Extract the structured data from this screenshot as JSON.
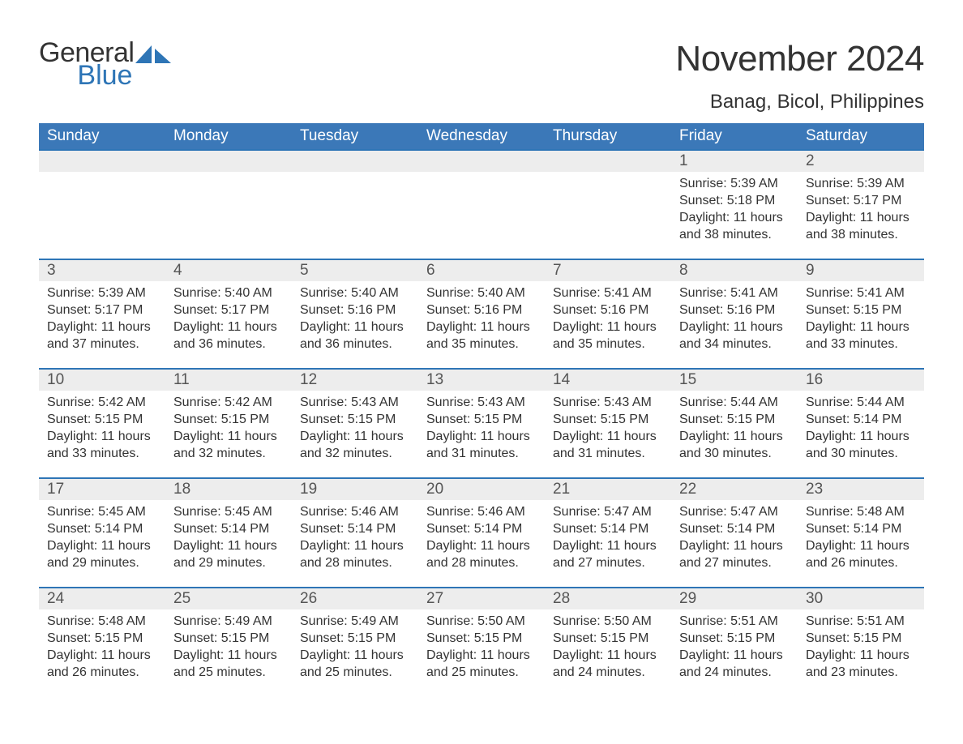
{
  "logo": {
    "general": "General",
    "blue": "Blue",
    "icon_color": "#2e75b6",
    "text_color_dark": "#333333"
  },
  "title": "November 2024",
  "location": "Banag, Bicol, Philippines",
  "colors": {
    "header_bg": "#3b78b8",
    "header_text": "#ffffff",
    "daynum_bg": "#ededed",
    "daynum_border": "#2e75b6",
    "body_text": "#333333",
    "daynum_text": "#555555",
    "page_bg": "#ffffff"
  },
  "fonts": {
    "title_size": 44,
    "location_size": 24,
    "header_size": 19,
    "daynum_size": 19,
    "detail_size": 16
  },
  "weekday_headers": [
    "Sunday",
    "Monday",
    "Tuesday",
    "Wednesday",
    "Thursday",
    "Friday",
    "Saturday"
  ],
  "weeks": [
    [
      null,
      null,
      null,
      null,
      null,
      {
        "n": "1",
        "sunrise": "Sunrise: 5:39 AM",
        "sunset": "Sunset: 5:18 PM",
        "daylight": "Daylight: 11 hours and 38 minutes."
      },
      {
        "n": "2",
        "sunrise": "Sunrise: 5:39 AM",
        "sunset": "Sunset: 5:17 PM",
        "daylight": "Daylight: 11 hours and 38 minutes."
      }
    ],
    [
      {
        "n": "3",
        "sunrise": "Sunrise: 5:39 AM",
        "sunset": "Sunset: 5:17 PM",
        "daylight": "Daylight: 11 hours and 37 minutes."
      },
      {
        "n": "4",
        "sunrise": "Sunrise: 5:40 AM",
        "sunset": "Sunset: 5:17 PM",
        "daylight": "Daylight: 11 hours and 36 minutes."
      },
      {
        "n": "5",
        "sunrise": "Sunrise: 5:40 AM",
        "sunset": "Sunset: 5:16 PM",
        "daylight": "Daylight: 11 hours and 36 minutes."
      },
      {
        "n": "6",
        "sunrise": "Sunrise: 5:40 AM",
        "sunset": "Sunset: 5:16 PM",
        "daylight": "Daylight: 11 hours and 35 minutes."
      },
      {
        "n": "7",
        "sunrise": "Sunrise: 5:41 AM",
        "sunset": "Sunset: 5:16 PM",
        "daylight": "Daylight: 11 hours and 35 minutes."
      },
      {
        "n": "8",
        "sunrise": "Sunrise: 5:41 AM",
        "sunset": "Sunset: 5:16 PM",
        "daylight": "Daylight: 11 hours and 34 minutes."
      },
      {
        "n": "9",
        "sunrise": "Sunrise: 5:41 AM",
        "sunset": "Sunset: 5:15 PM",
        "daylight": "Daylight: 11 hours and 33 minutes."
      }
    ],
    [
      {
        "n": "10",
        "sunrise": "Sunrise: 5:42 AM",
        "sunset": "Sunset: 5:15 PM",
        "daylight": "Daylight: 11 hours and 33 minutes."
      },
      {
        "n": "11",
        "sunrise": "Sunrise: 5:42 AM",
        "sunset": "Sunset: 5:15 PM",
        "daylight": "Daylight: 11 hours and 32 minutes."
      },
      {
        "n": "12",
        "sunrise": "Sunrise: 5:43 AM",
        "sunset": "Sunset: 5:15 PM",
        "daylight": "Daylight: 11 hours and 32 minutes."
      },
      {
        "n": "13",
        "sunrise": "Sunrise: 5:43 AM",
        "sunset": "Sunset: 5:15 PM",
        "daylight": "Daylight: 11 hours and 31 minutes."
      },
      {
        "n": "14",
        "sunrise": "Sunrise: 5:43 AM",
        "sunset": "Sunset: 5:15 PM",
        "daylight": "Daylight: 11 hours and 31 minutes."
      },
      {
        "n": "15",
        "sunrise": "Sunrise: 5:44 AM",
        "sunset": "Sunset: 5:15 PM",
        "daylight": "Daylight: 11 hours and 30 minutes."
      },
      {
        "n": "16",
        "sunrise": "Sunrise: 5:44 AM",
        "sunset": "Sunset: 5:14 PM",
        "daylight": "Daylight: 11 hours and 30 minutes."
      }
    ],
    [
      {
        "n": "17",
        "sunrise": "Sunrise: 5:45 AM",
        "sunset": "Sunset: 5:14 PM",
        "daylight": "Daylight: 11 hours and 29 minutes."
      },
      {
        "n": "18",
        "sunrise": "Sunrise: 5:45 AM",
        "sunset": "Sunset: 5:14 PM",
        "daylight": "Daylight: 11 hours and 29 minutes."
      },
      {
        "n": "19",
        "sunrise": "Sunrise: 5:46 AM",
        "sunset": "Sunset: 5:14 PM",
        "daylight": "Daylight: 11 hours and 28 minutes."
      },
      {
        "n": "20",
        "sunrise": "Sunrise: 5:46 AM",
        "sunset": "Sunset: 5:14 PM",
        "daylight": "Daylight: 11 hours and 28 minutes."
      },
      {
        "n": "21",
        "sunrise": "Sunrise: 5:47 AM",
        "sunset": "Sunset: 5:14 PM",
        "daylight": "Daylight: 11 hours and 27 minutes."
      },
      {
        "n": "22",
        "sunrise": "Sunrise: 5:47 AM",
        "sunset": "Sunset: 5:14 PM",
        "daylight": "Daylight: 11 hours and 27 minutes."
      },
      {
        "n": "23",
        "sunrise": "Sunrise: 5:48 AM",
        "sunset": "Sunset: 5:14 PM",
        "daylight": "Daylight: 11 hours and 26 minutes."
      }
    ],
    [
      {
        "n": "24",
        "sunrise": "Sunrise: 5:48 AM",
        "sunset": "Sunset: 5:15 PM",
        "daylight": "Daylight: 11 hours and 26 minutes."
      },
      {
        "n": "25",
        "sunrise": "Sunrise: 5:49 AM",
        "sunset": "Sunset: 5:15 PM",
        "daylight": "Daylight: 11 hours and 25 minutes."
      },
      {
        "n": "26",
        "sunrise": "Sunrise: 5:49 AM",
        "sunset": "Sunset: 5:15 PM",
        "daylight": "Daylight: 11 hours and 25 minutes."
      },
      {
        "n": "27",
        "sunrise": "Sunrise: 5:50 AM",
        "sunset": "Sunset: 5:15 PM",
        "daylight": "Daylight: 11 hours and 25 minutes."
      },
      {
        "n": "28",
        "sunrise": "Sunrise: 5:50 AM",
        "sunset": "Sunset: 5:15 PM",
        "daylight": "Daylight: 11 hours and 24 minutes."
      },
      {
        "n": "29",
        "sunrise": "Sunrise: 5:51 AM",
        "sunset": "Sunset: 5:15 PM",
        "daylight": "Daylight: 11 hours and 24 minutes."
      },
      {
        "n": "30",
        "sunrise": "Sunrise: 5:51 AM",
        "sunset": "Sunset: 5:15 PM",
        "daylight": "Daylight: 11 hours and 23 minutes."
      }
    ]
  ]
}
